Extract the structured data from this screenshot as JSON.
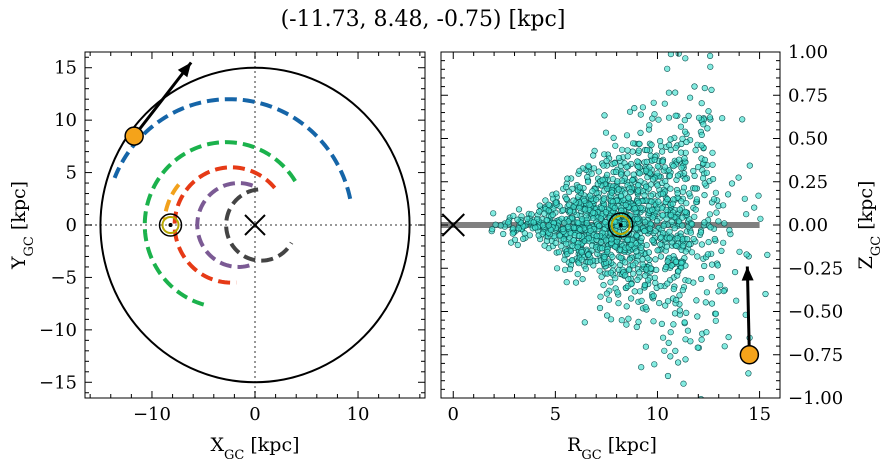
{
  "title": "(-11.73, 8.48, -0.75) [kpc]",
  "chart_data": [
    {
      "type": "scatter",
      "panel": "left",
      "xlabel": "X<sub>GC</sub> [kpc]",
      "xlabel_main": "X",
      "xlabel_sub": "GC",
      "xlabel_unit": " [kpc]",
      "ylabel_main": "Y",
      "ylabel_sub": "GC",
      "ylabel_unit": " [kpc]",
      "xlim": [
        -16.5,
        16.5
      ],
      "ylim": [
        -16.5,
        16.5
      ],
      "xticks": [
        -10,
        0,
        10
      ],
      "yticks": [
        -15,
        -10,
        -5,
        0,
        5,
        10,
        15
      ],
      "outer_circle_radius": 15,
      "galactic_center": [
        0,
        0
      ],
      "sun_position": [
        -8.2,
        0
      ],
      "object_position": [
        -11.73,
        8.48
      ],
      "velocity_arrow_tip": [
        -6.2,
        15.5
      ],
      "spiral_arms": [
        {
          "color": "#1565a8",
          "radius": 12.0,
          "center": [
            -2.5,
            0
          ],
          "theta_start": 12,
          "theta_end": 158
        },
        {
          "color": "#1bb24c",
          "radius": 7.9,
          "center": [
            -2.8,
            0
          ],
          "theta_start": 32,
          "theta_end": 255
        },
        {
          "color": "#f2a11c",
          "radius": 6.0,
          "center": [
            -2.8,
            0
          ],
          "theta_start": 140,
          "theta_end": 175
        },
        {
          "color": "#e63a16",
          "radius": 5.5,
          "center": [
            -2.3,
            0
          ],
          "theta_start": 40,
          "theta_end": 275
        },
        {
          "color": "#7b5a94",
          "radius": 4.0,
          "center": [
            -1.6,
            0
          ],
          "theta_start": 70,
          "theta_end": 290
        },
        {
          "color": "#444444",
          "radius": 3.4,
          "center": [
            0.6,
            0
          ],
          "theta_start": 95,
          "theta_end": 330
        }
      ]
    },
    {
      "type": "scatter",
      "panel": "right",
      "xlabel_main": "R",
      "xlabel_sub": "GC",
      "xlabel_unit": " [kpc]",
      "ylabel_main": "Z",
      "ylabel_sub": "GC",
      "ylabel_unit": " [kpc]",
      "xlim": [
        -0.6,
        16
      ],
      "ylim": [
        -1.0,
        1.0
      ],
      "xticks": [
        0,
        5,
        10,
        15
      ],
      "yticks": [
        -1.0,
        -0.75,
        -0.5,
        -0.25,
        0.0,
        0.25,
        0.5,
        0.75,
        1.0
      ],
      "ytick_labels": [
        "−1.00",
        "−0.75",
        "−0.50",
        "−0.25",
        "0.00",
        "0.25",
        "0.50",
        "0.75",
        "1.00"
      ],
      "xtick_labels": [
        "0",
        "5",
        "10",
        "15"
      ],
      "disk_line": {
        "x": [
          -0.6,
          15
        ],
        "z": 0,
        "color": "#808080"
      },
      "galactic_center": [
        0,
        0
      ],
      "sun_position": [
        8.2,
        0
      ],
      "object_position": [
        14.5,
        -0.75
      ],
      "velocity_arrow_tip": [
        14.4,
        -0.24
      ],
      "point_color": "#40e0d0",
      "point_cloud": {
        "n": 1500,
        "r_center": 8.5,
        "r_spread": 2.5,
        "z_spread_base": 0.04,
        "z_spread_slope": 0.045
      }
    }
  ],
  "left_xtick_labels": [
    "−10",
    "0",
    "10"
  ],
  "left_ytick_labels": [
    "−15",
    "−10",
    "−5",
    "0",
    "5",
    "10",
    "15"
  ]
}
